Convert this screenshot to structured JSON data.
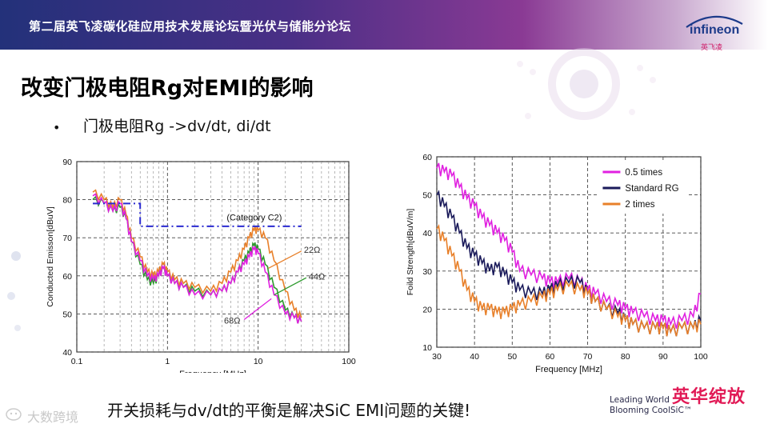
{
  "header": {
    "title": "第二届英飞凌碳化硅应用技术发展论坛暨光伏与储能分论坛",
    "logo_text": "infineon",
    "logo_sub": "英飞凌"
  },
  "slide": {
    "title": "改变门极电阻Rg对EMI的影响",
    "bullet_marker": "•",
    "bullet": "门极电阻Rg  ->dv/dt, di/dt"
  },
  "footer": {
    "conclusion": "开关损耗与dv/dt的平衡是解决SiC EMI问题的关键!",
    "brand_line1": "Leading World",
    "brand_line2": "Blooming CoolSiC™",
    "brand_cn": "英华绽放",
    "source": "大数跨境"
  },
  "colors": {
    "banner_start": "#23317a",
    "banner_end": "#c9a9cf",
    "magenta": "#e020e0",
    "navy": "#1a1a5a",
    "orange": "#e8802a",
    "green": "#2e9a2e",
    "limit_line": "#2b2bd0"
  },
  "chart_data": [
    {
      "type": "line",
      "xscale": "log",
      "xlabel": "Frequency [MHz]",
      "ylabel": "Conducted Emisson[dBuV]",
      "xlim": [
        0.1,
        100
      ],
      "ylim": [
        40,
        90
      ],
      "x_ticks": [
        "0.1",
        "1",
        "10",
        "100"
      ],
      "y_ticks": [
        "40",
        "50",
        "60",
        "70",
        "80",
        "90"
      ],
      "annotations": [
        "(Category C2)",
        "22Ω",
        "44Ω",
        "68Ω"
      ],
      "grid": true,
      "series": [
        {
          "name": "22Ω",
          "color": "#e8802a",
          "x": [
            0.15,
            0.2,
            0.25,
            0.3,
            0.35,
            0.4,
            0.5,
            0.6,
            0.7,
            0.8,
            0.9,
            1.0,
            1.2,
            1.5,
            2,
            3,
            4,
            5,
            6,
            7,
            8,
            9,
            10,
            12,
            15,
            20,
            25,
            30
          ],
          "y": [
            82,
            80,
            78,
            80,
            76,
            70,
            65,
            61,
            60,
            61,
            63,
            61,
            59,
            58,
            57,
            56,
            58,
            61,
            64,
            67,
            70,
            72,
            72,
            70,
            64,
            56,
            51,
            49
          ]
        },
        {
          "name": "44Ω",
          "color": "#2e9a2e",
          "x": [
            0.15,
            0.2,
            0.25,
            0.3,
            0.35,
            0.4,
            0.5,
            0.6,
            0.7,
            0.8,
            0.9,
            1.0,
            1.2,
            1.5,
            2,
            3,
            4,
            5,
            6,
            7,
            8,
            9,
            10,
            12,
            15,
            20,
            25,
            30
          ],
          "y": [
            80,
            79,
            77,
            78,
            75,
            69,
            63,
            59,
            58,
            60,
            62,
            60,
            58,
            57,
            56,
            55,
            56,
            58,
            61,
            64,
            66,
            68,
            67,
            63,
            57,
            51,
            49,
            48
          ]
        },
        {
          "name": "68Ω",
          "color": "#e020e0",
          "x": [
            0.15,
            0.2,
            0.25,
            0.3,
            0.35,
            0.4,
            0.5,
            0.6,
            0.7,
            0.8,
            0.9,
            1.0,
            1.2,
            1.5,
            2,
            3,
            4,
            5,
            6,
            7,
            8,
            9,
            10,
            12,
            15,
            20,
            25,
            30
          ],
          "y": [
            81,
            79,
            77,
            79,
            75,
            69,
            64,
            60,
            59,
            60,
            62,
            60,
            58,
            57,
            55,
            55,
            56,
            58,
            61,
            63,
            65,
            67,
            66,
            61,
            55,
            50,
            49,
            48
          ]
        },
        {
          "name": "Category C2 limit",
          "color": "#2b2bd0",
          "dashed": true,
          "x": [
            0.15,
            0.5,
            0.5,
            5,
            30
          ],
          "y": [
            79,
            79,
            73,
            73,
            73
          ]
        }
      ]
    },
    {
      "type": "line",
      "xlabel": "Frequency [MHz]",
      "ylabel": "Foild Strength[dBuV/m]",
      "xlim": [
        30,
        100
      ],
      "ylim": [
        10,
        60
      ],
      "x_ticks": [
        "30",
        "40",
        "50",
        "60",
        "70",
        "80",
        "90",
        "100"
      ],
      "y_ticks": [
        "10",
        "20",
        "30",
        "40",
        "50",
        "60"
      ],
      "legend_position": "top-right",
      "grid": true,
      "series": [
        {
          "name": "0.5 times",
          "color": "#e020e0",
          "x": [
            30,
            32,
            34,
            36,
            38,
            40,
            42,
            44,
            46,
            48,
            50,
            52,
            55,
            58,
            60,
            62,
            65,
            68,
            70,
            72,
            75,
            78,
            80,
            82,
            85,
            88,
            90,
            92,
            95,
            98,
            100
          ],
          "y": [
            57,
            56,
            55,
            52,
            49,
            47,
            44,
            42,
            40,
            38,
            35,
            30,
            29,
            28,
            27,
            27,
            28,
            27,
            25,
            24,
            22,
            21,
            20,
            19,
            18,
            17,
            17,
            16,
            17,
            18,
            24
          ]
        },
        {
          "name": "Standard RG",
          "color": "#1a1a5a",
          "x": [
            30,
            32,
            34,
            36,
            38,
            40,
            42,
            44,
            46,
            48,
            50,
            52,
            55,
            58,
            60,
            62,
            65,
            68,
            70,
            72,
            75,
            78,
            80,
            82,
            85,
            88,
            90,
            92,
            95,
            98,
            100
          ],
          "y": [
            50,
            47,
            44,
            40,
            36,
            34,
            32,
            30,
            31,
            29,
            27,
            25,
            24,
            24,
            25,
            26,
            27,
            27,
            24,
            22,
            20,
            19,
            17,
            16,
            15,
            15,
            15,
            14,
            15,
            15,
            17
          ]
        },
        {
          "name": "2 times",
          "color": "#e8802a",
          "x": [
            30,
            32,
            34,
            36,
            38,
            40,
            42,
            44,
            46,
            48,
            50,
            52,
            55,
            58,
            60,
            62,
            65,
            68,
            70,
            72,
            75,
            78,
            80,
            82,
            85,
            88,
            90,
            92,
            95,
            98,
            100
          ],
          "y": [
            41,
            38,
            34,
            30,
            25,
            22,
            20,
            20,
            19,
            19,
            20,
            21,
            22,
            23,
            24,
            25,
            26,
            25,
            24,
            22,
            20,
            18,
            17,
            16,
            15,
            15,
            15,
            14,
            15,
            15,
            16
          ]
        }
      ]
    }
  ]
}
